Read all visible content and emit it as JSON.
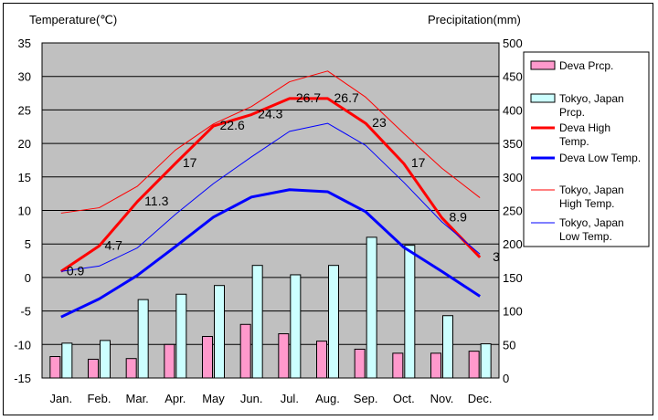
{
  "chart_data": {
    "type": "bar+line",
    "categories": [
      "Jan.",
      "Feb.",
      "Mar.",
      "Apr.",
      "May",
      "Jun.",
      "Jul.",
      "Aug.",
      "Sep.",
      "Oct.",
      "Nov.",
      "Dec."
    ],
    "y_left": {
      "label": "Temperature(℃)",
      "range": [
        -15,
        35
      ],
      "ticks": [
        35,
        30,
        25,
        20,
        15,
        10,
        5,
        0,
        -5,
        -10,
        -15
      ]
    },
    "y_right": {
      "label": "Precipitation(mm)",
      "range": [
        0,
        500
      ],
      "ticks": [
        500,
        450,
        400,
        350,
        300,
        250,
        200,
        150,
        100,
        50,
        0
      ]
    },
    "bars": [
      {
        "name": "Deva Prcp.",
        "color": "#ff99cc",
        "values": [
          32,
          28,
          29,
          50,
          62,
          80,
          66,
          55,
          43,
          37,
          37,
          40
        ]
      },
      {
        "name": "Tokyo, Japan Prcp.",
        "color": "#ccffff",
        "values": [
          52,
          56,
          117,
          125,
          138,
          168,
          154,
          168,
          210,
          198,
          93,
          51
        ]
      }
    ],
    "lines": [
      {
        "name": "Deva High Temp.",
        "color": "#ff0000",
        "width": 3,
        "values": [
          0.9,
          4.7,
          11.3,
          17,
          22.6,
          24.3,
          26.7,
          26.7,
          23,
          17,
          8.9,
          3
        ],
        "labels": [
          "0.9",
          "4.7",
          "11.3",
          "17",
          "22.6",
          "24.3",
          "26.7",
          "26.7",
          "23",
          "17",
          "8.9",
          "3"
        ]
      },
      {
        "name": "Deva Low Temp.",
        "color": "#0000ff",
        "width": 3,
        "values": [
          -5.9,
          -3.2,
          0.3,
          4.6,
          9,
          12,
          13.1,
          12.8,
          9.8,
          4.5,
          0.9,
          -2.8
        ]
      },
      {
        "name": "Tokyo, Japan High Temp.",
        "color": "#ff0000",
        "width": 1,
        "values": [
          9.6,
          10.4,
          13.6,
          19,
          22.9,
          25.5,
          29.2,
          30.8,
          26.9,
          21.5,
          16.3,
          11.9
        ]
      },
      {
        "name": "Tokyo, Japan Low Temp.",
        "color": "#0000ff",
        "width": 1,
        "values": [
          0.9,
          1.7,
          4.4,
          9.4,
          14,
          18,
          21.8,
          23,
          19.7,
          14.2,
          8.3,
          3.5
        ]
      }
    ],
    "legend": {
      "placement": "right",
      "items": [
        {
          "kind": "bar",
          "color": "#ff99cc",
          "lines": [
            "Deva Prcp."
          ]
        },
        {
          "kind": "bar",
          "color": "#ccffff",
          "lines": [
            "Tokyo, Japan",
            "Prcp."
          ]
        },
        {
          "kind": "line",
          "color": "#ff0000",
          "width": 3,
          "lines": [
            "Deva High",
            "Temp."
          ]
        },
        {
          "kind": "line",
          "color": "#0000ff",
          "width": 3,
          "lines": [
            "Deva Low Temp."
          ]
        },
        {
          "kind": "line",
          "color": "#ff0000",
          "width": 1,
          "lines": [
            "Tokyo, Japan",
            "High Temp."
          ]
        },
        {
          "kind": "line",
          "color": "#0000ff",
          "width": 1,
          "lines": [
            "Tokyo, Japan",
            "Low Temp."
          ]
        }
      ]
    },
    "plot_background": "#c0c0c0",
    "grid": true
  }
}
